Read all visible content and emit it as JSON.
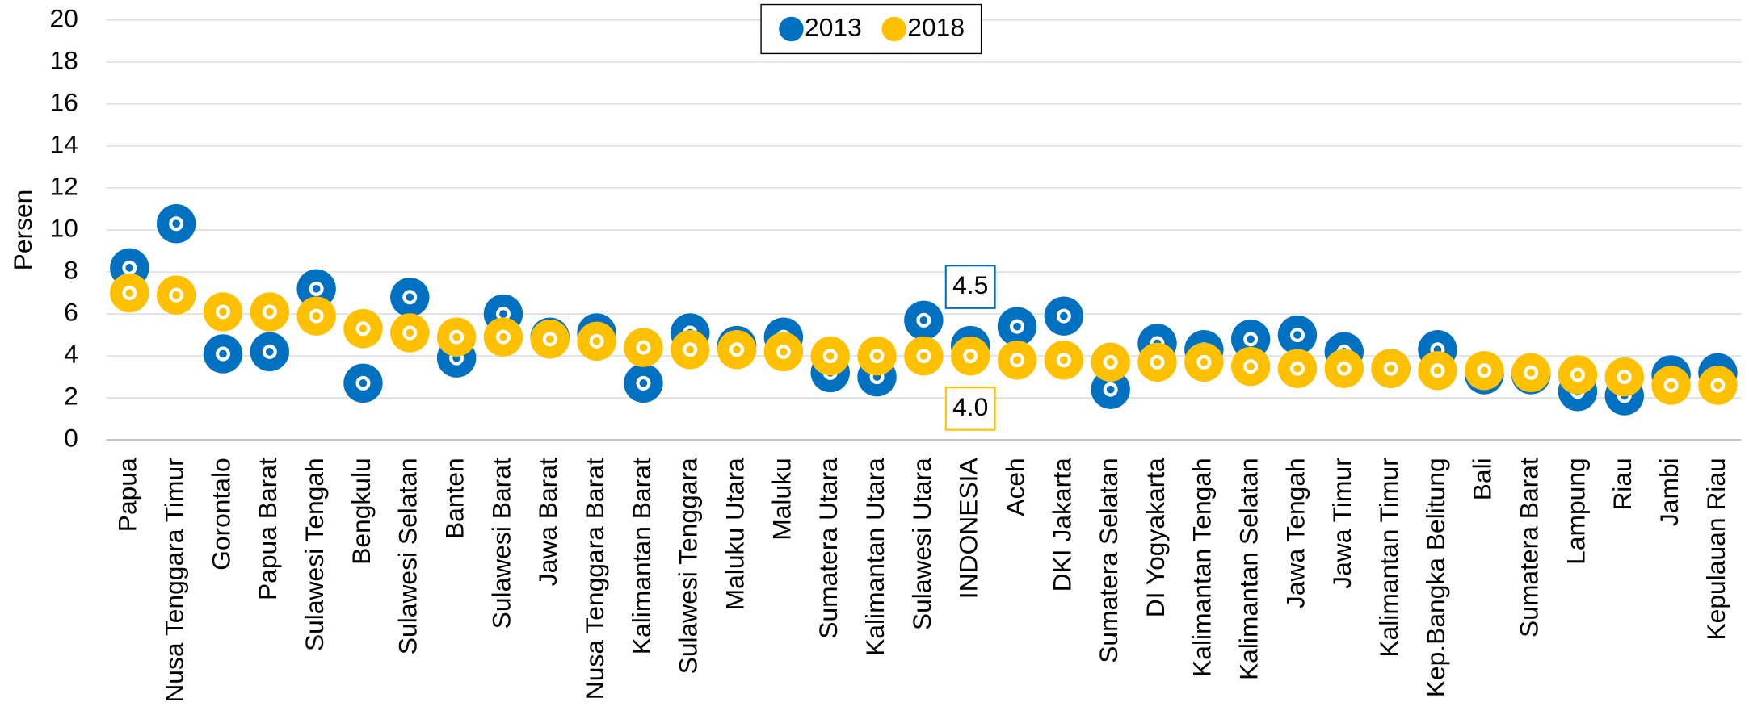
{
  "chart_data": {
    "type": "dot",
    "y_label": "Persen",
    "categories": [
      "Papua",
      "Nusa Tenggara Timur",
      "Gorontalo",
      "Papua Barat",
      "Sulawesi Tengah",
      "Bengkulu",
      "Sulawesi Selatan",
      "Banten",
      "Sulawesi Barat",
      "Jawa Barat",
      "Nusa Tenggara Barat",
      "Kalimantan Barat",
      "Sulawesi Tenggara",
      "Maluku Utara",
      "Maluku",
      "Sumatera Utara",
      "Kalimantan Utara",
      "Sulawesi Utara",
      "INDONESIA",
      "Aceh",
      "DKI Jakarta",
      "Sumatera Selatan",
      "DI Yogyakarta",
      "Kalimantan Tengah",
      "Kalimantan Selatan",
      "Jawa Tengah",
      "Jawa Timur",
      "Kalimantan Timur",
      "Kep.Bangka Belitung",
      "Bali",
      "Sumatera Barat",
      "Lampung",
      "Riau",
      "Jambi",
      "Kepulauan Riau"
    ],
    "series": [
      {
        "name": "2013",
        "color": "#0070c0",
        "values": [
          8.2,
          10.3,
          4.1,
          4.2,
          7.2,
          2.7,
          6.8,
          3.9,
          6.0,
          4.9,
          5.1,
          2.7,
          5.1,
          4.5,
          4.9,
          3.2,
          3.0,
          5.7,
          4.5,
          5.4,
          5.9,
          2.4,
          4.6,
          4.3,
          4.8,
          5.0,
          4.2,
          3.4,
          4.3,
          3.1,
          3.1,
          2.3,
          2.1,
          3.1,
          3.2
        ],
        "value_labels": [
          null,
          null,
          null,
          null,
          null,
          null,
          null,
          null,
          null,
          null,
          null,
          null,
          null,
          null,
          null,
          null,
          null,
          null,
          "4.5",
          null,
          null,
          null,
          null,
          null,
          null,
          null,
          null,
          null,
          null,
          null,
          null,
          null,
          null,
          null,
          null
        ]
      },
      {
        "name": "2018",
        "color": "#ffc000",
        "values": [
          7.0,
          6.9,
          6.1,
          6.1,
          5.9,
          5.3,
          5.1,
          4.9,
          4.9,
          4.8,
          4.7,
          4.4,
          4.3,
          4.3,
          4.2,
          4.0,
          4.0,
          4.0,
          4.0,
          3.8,
          3.8,
          3.7,
          3.7,
          3.7,
          3.5,
          3.4,
          3.4,
          3.4,
          3.3,
          3.3,
          3.2,
          3.1,
          3.0,
          2.6,
          2.6
        ],
        "value_labels": [
          null,
          null,
          null,
          null,
          null,
          null,
          null,
          null,
          null,
          null,
          null,
          null,
          null,
          null,
          null,
          null,
          null,
          null,
          "4.0",
          null,
          null,
          null,
          null,
          null,
          null,
          null,
          null,
          null,
          null,
          null,
          null,
          null,
          null,
          null,
          null
        ]
      }
    ],
    "ylim": [
      0,
      20
    ],
    "yticks": [
      0,
      2,
      4,
      6,
      8,
      10,
      12,
      14,
      16,
      18,
      20
    ],
    "grid": true,
    "legend": "top"
  }
}
